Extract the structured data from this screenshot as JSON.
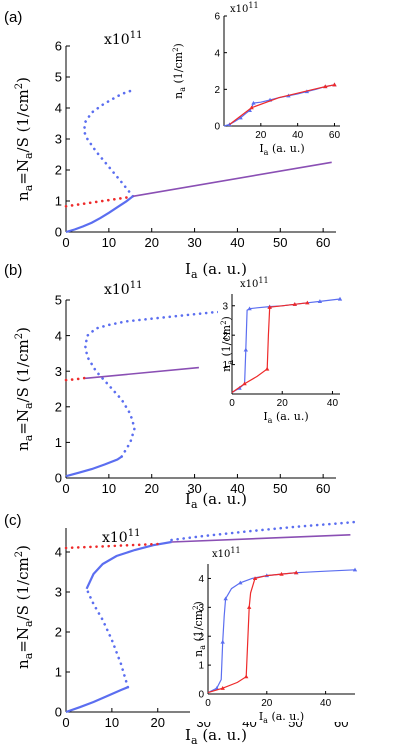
{
  "colors": {
    "blue": "#5b6ef0",
    "red": "#ee2a2a",
    "purple": "#8a4fb4",
    "axis": "#000000"
  },
  "chart_data": [
    {
      "panel_label": "(a)",
      "type": "line",
      "multiplier": "x10",
      "multiplier_exp": "11",
      "xlabel_main": "I",
      "xlabel_sub": "a",
      "xlabel_rest": " (a. u.)",
      "ylabel_a": "n",
      "ylabel_a_sub": "a",
      "ylabel_b": "=N",
      "ylabel_b_sub": "a",
      "ylabel_c": "/S (1/cm",
      "ylabel_sup": "2",
      "ylabel_d": ")",
      "xlim": [
        0,
        63
      ],
      "ylim": [
        0,
        6
      ],
      "xticks": [
        "0",
        "10",
        "20",
        "30",
        "40",
        "50",
        "60"
      ],
      "yticks": [
        "0",
        "1",
        "2",
        "3",
        "4",
        "5",
        "6"
      ],
      "series": [
        {
          "color": "blue",
          "style": "solid",
          "x": [
            0,
            2,
            4,
            6,
            8,
            10,
            12,
            14,
            15.6
          ],
          "y": [
            0,
            0.08,
            0.18,
            0.3,
            0.45,
            0.62,
            0.8,
            0.98,
            1.15
          ]
        },
        {
          "color": "blue",
          "style": "dots",
          "x": [
            15.6,
            13,
            10,
            7,
            5,
            4.2,
            4.5,
            6,
            8.5,
            11,
            13,
            15
          ],
          "y": [
            1.15,
            1.6,
            2.1,
            2.6,
            3.0,
            3.25,
            3.55,
            3.85,
            4.1,
            4.3,
            4.45,
            4.55
          ]
        },
        {
          "color": "red",
          "style": "dots",
          "x": [
            0,
            5,
            10,
            15
          ],
          "y": [
            0.83,
            0.93,
            1.03,
            1.13
          ]
        },
        {
          "color": "purple",
          "style": "solid",
          "x": [
            15.6,
            62
          ],
          "y": [
            1.15,
            2.25
          ]
        }
      ],
      "inset": {
        "multiplier": "x10",
        "multiplier_exp": "11",
        "xlabel_main": "I",
        "xlabel_sub": "a",
        "xlabel_rest": " (a. u.)",
        "ylabel_main": "n",
        "ylabel_sub": "a",
        "ylabel_rest": " (1/cm",
        "ylabel_sup": "2",
        "ylabel_end": ")",
        "xlim": [
          0,
          63
        ],
        "ylim": [
          0,
          6
        ],
        "xticks": [
          "20",
          "40",
          "60"
        ],
        "yticks": [
          "0",
          "2",
          "4",
          "6"
        ],
        "series": [
          {
            "color": "blue",
            "style": "marked",
            "x": [
              0,
              3,
              6,
              9,
              12,
              14,
              15,
              16,
              20,
              25,
              30,
              35,
              40,
              45,
              50,
              55,
              60
            ],
            "y": [
              0,
              0.08,
              0.25,
              0.45,
              0.7,
              0.85,
              1.0,
              1.25,
              1.3,
              1.42,
              1.55,
              1.65,
              1.75,
              1.88,
              2.0,
              2.15,
              2.25
            ]
          },
          {
            "color": "red",
            "style": "marked",
            "x": [
              3,
              15,
              30,
              55,
              60
            ],
            "y": [
              0.08,
              1.0,
              1.55,
              2.15,
              2.25
            ]
          }
        ]
      }
    },
    {
      "panel_label": "(b)",
      "type": "line",
      "multiplier": "x10",
      "multiplier_exp": "11",
      "xlabel_main": "I",
      "xlabel_sub": "a",
      "xlabel_rest": " (a. u.)",
      "ylabel_a": "",
      "ylabel_a_sub": "",
      "ylabel_b": "",
      "ylabel_b_sub": "",
      "ylabel_c": "",
      "ylabel_sup": "",
      "ylabel_d": "",
      "xlim": [
        0,
        63
      ],
      "ylim": [
        0,
        5
      ],
      "xticks": [
        "0",
        "10",
        "20",
        "30",
        "40",
        "50",
        "60"
      ],
      "yticks": [
        "0",
        "1",
        "2",
        "3",
        "4",
        "5"
      ],
      "series": [
        {
          "color": "blue",
          "style": "solid",
          "x": [
            0,
            3,
            6,
            9,
            12,
            13
          ],
          "y": [
            0.05,
            0.15,
            0.25,
            0.38,
            0.52,
            0.6
          ]
        },
        {
          "color": "blue",
          "style": "dots",
          "x": [
            13,
            15,
            16,
            15,
            13,
            10,
            7,
            5,
            4.5,
            5,
            7,
            10,
            14,
            18,
            22,
            26,
            30,
            34,
            38,
            42,
            46,
            50
          ],
          "y": [
            0.6,
            1.0,
            1.4,
            1.8,
            2.2,
            2.6,
            3.0,
            3.4,
            3.7,
            4.0,
            4.2,
            4.3,
            4.4,
            4.45,
            4.5,
            4.55,
            4.6,
            4.65,
            4.68,
            4.7,
            4.72,
            4.75
          ]
        },
        {
          "color": "red",
          "style": "dots",
          "x": [
            0,
            2,
            4,
            5
          ],
          "y": [
            2.75,
            2.77,
            2.8,
            2.82
          ]
        },
        {
          "color": "purple",
          "style": "solid",
          "x": [
            4.5,
            31
          ],
          "y": [
            2.8,
            3.1
          ]
        }
      ],
      "inset": {
        "multiplier": "x10",
        "multiplier_exp": "11",
        "xlabel_main": "I",
        "xlabel_sub": "a",
        "xlabel_rest": " (a. u.)",
        "ylabel_main": "n",
        "ylabel_sub": "a",
        "ylabel_rest": " (1/cm",
        "ylabel_sup": "2",
        "ylabel_end": ")",
        "xlim": [
          0,
          43
        ],
        "ylim": [
          0,
          3.4
        ],
        "xticks": [
          "0",
          "20",
          "40"
        ],
        "yticks": [
          "1",
          "2",
          "3"
        ],
        "series": [
          {
            "color": "blue",
            "style": "marked",
            "x": [
              0,
              3,
              5,
              5.5,
              6,
              7,
              10,
              15,
              20,
              25,
              30,
              35,
              40,
              43
            ],
            "y": [
              0.05,
              0.2,
              0.35,
              1.5,
              2.85,
              2.9,
              2.93,
              2.97,
              3.0,
              3.05,
              3.1,
              3.15,
              3.2,
              3.23
            ]
          },
          {
            "color": "red",
            "style": "marked",
            "x": [
              0,
              5,
              10,
              14,
              14.5,
              15,
              20,
              25,
              30
            ],
            "y": [
              0.05,
              0.35,
              0.6,
              0.85,
              2.0,
              2.95,
              3.0,
              3.05,
              3.1
            ]
          }
        ]
      }
    },
    {
      "panel_label": "(c)",
      "type": "line",
      "multiplier": "x10",
      "multiplier_exp": "11",
      "xlabel_main": "I",
      "xlabel_sub": "a",
      "xlabel_rest": " (a. u.)",
      "ylabel_a": "n",
      "ylabel_a_sub": "a",
      "ylabel_b": "=N",
      "ylabel_b_sub": "a",
      "ylabel_c": "/S (1/cm",
      "ylabel_sup": "2",
      "ylabel_d": ")",
      "xlim": [
        0,
        63
      ],
      "ylim": [
        0,
        4.6
      ],
      "xticks": [
        "0",
        "10",
        "20",
        "30",
        "40",
        "50",
        "60"
      ],
      "yticks": [
        "0",
        "1",
        "2",
        "3",
        "4"
      ],
      "series": [
        {
          "color": "blue",
          "style": "solid",
          "x": [
            0,
            3,
            6,
            9,
            12,
            13.5
          ],
          "y": [
            0.0,
            0.12,
            0.25,
            0.4,
            0.55,
            0.62
          ]
        },
        {
          "color": "blue",
          "style": "dots",
          "x": [
            13.5,
            12,
            10,
            8,
            6,
            5,
            4.5
          ],
          "y": [
            0.62,
            1.2,
            1.8,
            2.3,
            2.7,
            2.95,
            3.08
          ]
        },
        {
          "color": "blue",
          "style": "solid",
          "x": [
            4.5,
            6,
            8,
            11,
            15,
            19,
            23
          ],
          "y": [
            3.08,
            3.45,
            3.7,
            3.9,
            4.05,
            4.17,
            4.25
          ]
        },
        {
          "color": "blue",
          "style": "dots",
          "x": [
            23,
            30,
            40,
            50,
            60,
            63
          ],
          "y": [
            4.3,
            4.4,
            4.52,
            4.63,
            4.72,
            4.75
          ]
        },
        {
          "color": "red",
          "style": "dots",
          "x": [
            0,
            10,
            20
          ],
          "y": [
            4.1,
            4.15,
            4.2
          ]
        },
        {
          "color": "purple",
          "style": "solid",
          "x": [
            23,
            62
          ],
          "y": [
            4.25,
            4.43
          ]
        }
      ],
      "inset": {
        "multiplier": "x10",
        "multiplier_exp": "11",
        "xlabel_main": "I",
        "xlabel_sub": "a",
        "xlabel_rest": " (a. u.)",
        "ylabel_main": "n",
        "ylabel_sub": "a",
        "ylabel_rest": " (1/cm",
        "ylabel_sup": "2",
        "ylabel_end": ")",
        "xlim": [
          0,
          50
        ],
        "ylim": [
          0,
          4.5
        ],
        "xticks": [
          "0",
          "20",
          "40"
        ],
        "yticks": [
          "0",
          "1",
          "2",
          "3",
          "4"
        ],
        "series": [
          {
            "color": "blue",
            "style": "marked",
            "x": [
              0,
              3,
              4.5,
              5,
              5.5,
              6,
              8,
              11,
              15,
              20,
              25,
              30,
              40,
              50
            ],
            "y": [
              0.05,
              0.2,
              0.5,
              1.8,
              2.7,
              3.3,
              3.65,
              3.85,
              4.0,
              4.1,
              4.15,
              4.2,
              4.25,
              4.3
            ]
          },
          {
            "color": "red",
            "style": "marked",
            "x": [
              0,
              5,
              10,
              13,
              13.5,
              14,
              14.5,
              16,
              20,
              25,
              30
            ],
            "y": [
              0.05,
              0.2,
              0.4,
              0.6,
              1.8,
              3.0,
              3.5,
              4.0,
              4.1,
              4.15,
              4.2
            ]
          }
        ]
      }
    }
  ]
}
